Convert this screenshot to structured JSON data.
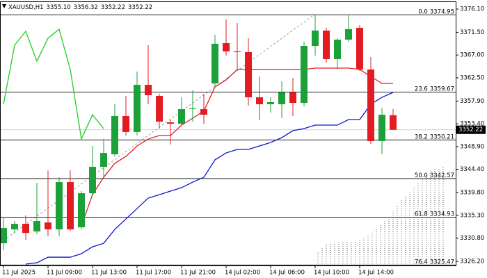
{
  "chart_data": {
    "type": "candlestick",
    "title": "XAUUSD,H1",
    "header_values": [
      {
        "value": 3355.1,
        "label": "3355.10"
      },
      3356.32,
      3352.22,
      3352.22
    ],
    "last_price": 3352.22,
    "categories": [
      "11 Jul 2025",
      null,
      null,
      null,
      "11 Jul 09:00",
      null,
      null,
      null,
      "11 Jul 13:00",
      null,
      null,
      null,
      "11 Jul 17:00",
      null,
      null,
      null,
      "11 Jul 21:00",
      null,
      null,
      null,
      "14 Jul 02:00",
      null,
      null,
      null,
      "14 Jul 06:00",
      null,
      null,
      null,
      "14 Jul 10:00",
      null,
      null,
      null,
      "14 Jul 14:00",
      null,
      null,
      null
    ],
    "open": [
      3329.77,
      3332.52,
      3333.62,
      3332.11,
      3333.89,
      3332.52,
      3341.87,
      3332.93,
      3339.67,
      3344.89,
      3347.37,
      3354.93,
      3351.77,
      3361.11,
      3358.91,
      3353.69,
      3353.42,
      3356.3,
      3356.3,
      3361.39,
      3369.36,
      3367.71,
      3367.58,
      3358.64,
      3357.27,
      3357.27,
      3359.6,
      3357.54,
      3368.81,
      3371.84,
      3366.2,
      3370.05,
      3372.39,
      3364.14,
      3349.98,
      3355.1
    ],
    "high": [
      3334.99,
      3334.17,
      3335.27,
      3341.73,
      3344.2,
      3342.83,
      3344.2,
      3340.08,
      3349.02,
      3350.39,
      3357.27,
      3358.91,
      3363.73,
      3368.95,
      3359.33,
      3354.24,
      3358.64,
      3360.01,
      3359.33,
      3371.01,
      3374.04,
      3373.35,
      3370.33,
      3362.76,
      3358.64,
      3361.8,
      3362.49,
      3369.64,
      3374.95,
      3372.39,
      3370.33,
      3374.86,
      3372.94,
      3366.61,
      3356.58,
      3356.32
    ],
    "low": [
      3328.39,
      3331.83,
      3330.45,
      3331.56,
      3331.14,
      3331.14,
      3332.24,
      3332.52,
      3339.39,
      3342.83,
      3346.95,
      3351.08,
      3351.08,
      3357.27,
      3352.45,
      3349.29,
      3353.14,
      3353.83,
      3353.42,
      3360.7,
      3366.89,
      3364.14,
      3356.99,
      3354.1,
      3355.62,
      3354.52,
      3354.93,
      3356.85,
      3366.89,
      3365.51,
      3364.14,
      3369.64,
      3363.86,
      3349.43,
      3347.37,
      3352.22
    ],
    "close": [
      3332.79,
      3333.62,
      3331.83,
      3334.17,
      3332.52,
      3341.87,
      3332.52,
      3339.67,
      3344.89,
      3347.64,
      3354.93,
      3351.77,
      3361.11,
      3359.05,
      3353.83,
      3353.42,
      3356.3,
      3356.44,
      3355.2,
      3369.23,
      3367.71,
      3367.64,
      3358.64,
      3357.27,
      3357.68,
      3359.6,
      3357.54,
      3368.81,
      3371.84,
      3366.2,
      3370.05,
      3372.11,
      3364.14,
      3349.98,
      3355.2,
      3352.22
    ],
    "up_color": "#1ca13a",
    "down_color": "#e31b23",
    "lines": [
      {
        "color": "#22cc22",
        "values": [
          3357.27,
          3368.95,
          3371.7,
          3365.79,
          3370.33,
          3372.11,
          3364.14,
          3350.39,
          3355.2,
          3352.45,
          null,
          null,
          null,
          null,
          null,
          null,
          null,
          null,
          null,
          null,
          null,
          null,
          null,
          null,
          null,
          null,
          null,
          null,
          null,
          null,
          null,
          null,
          null,
          null,
          null,
          null
        ]
      },
      {
        "color": "#e31b23",
        "values": [
          null,
          null,
          null,
          null,
          null,
          null,
          null,
          3333.21,
          3339.39,
          3342.83,
          3345.58,
          3346.95,
          3349.02,
          3350.39,
          3351.08,
          3351.08,
          3353.14,
          3354.52,
          3355.89,
          3360.7,
          3362.08,
          3364.14,
          3364.14,
          3364.14,
          3364.14,
          3364.14,
          3364.14,
          3364.14,
          3364.41,
          3364.41,
          3364.41,
          3364.41,
          3364.14,
          3362.76,
          3361.39,
          3361.39
        ]
      },
      {
        "color": "#0a14d2",
        "values": [
          null,
          null,
          3325.65,
          3325.92,
          3327.02,
          3327.02,
          3327.02,
          3327.71,
          3329.08,
          3329.77,
          3332.52,
          3334.58,
          3336.64,
          3338.71,
          3339.39,
          3340.08,
          3340.77,
          3341.87,
          3342.83,
          3346.27,
          3347.64,
          3348.33,
          3348.33,
          3349.02,
          3349.7,
          3350.67,
          3352.04,
          3352.45,
          3353.14,
          3353.14,
          3353.14,
          3354.24,
          3354.24,
          3357.27,
          3358.64,
          3359.6
        ]
      }
    ],
    "fib_levels": [
      {
        "ratio": "0.0",
        "price": 3374.95
      },
      {
        "ratio": "23.6",
        "price": 3359.67
      },
      {
        "ratio": "38.2",
        "price": 3350.21
      },
      {
        "ratio": "50.0",
        "price": 3342.57
      },
      {
        "ratio": "61.8",
        "price": 3334.93
      },
      {
        "ratio": "76.4",
        "price": 3325.47
      }
    ],
    "ylim": [
      3325.38,
      3377.61
    ],
    "yticks": [
      {
        "value": 3326.2,
        "label": "3326.20"
      },
      {
        "value": 3330.8,
        "label": "3330.80"
      },
      {
        "value": 3335.3,
        "label": "3335.30"
      },
      {
        "value": 3339.8,
        "label": "3339.80"
      },
      {
        "value": 3344.4,
        "label": "3344.40"
      },
      {
        "value": 3348.9,
        "label": "3348.90"
      },
      {
        "value": 3353.4,
        "label": "3353.40"
      },
      {
        "value": 3357.9,
        "label": "3357.90"
      },
      {
        "value": 3362.5,
        "label": "3362.50"
      },
      {
        "value": 3367.0,
        "label": "3367.00"
      },
      {
        "value": 3371.5,
        "label": "3371.50"
      },
      {
        "value": 3376.1,
        "label": "3376.10"
      }
    ]
  }
}
